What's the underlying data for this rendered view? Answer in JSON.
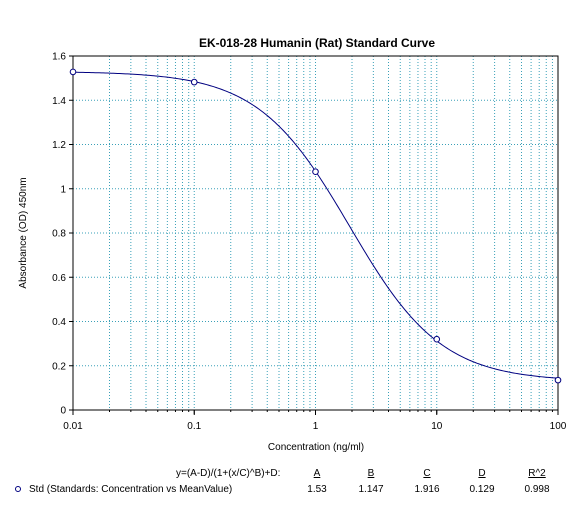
{
  "chart_data": {
    "type": "scatter",
    "title": "EK-018-28 Humanin (Rat) Standard Curve",
    "xlabel": "Concentration (ng/ml)",
    "ylabel": "Absorbance (OD) 450nm",
    "xscale": "log",
    "xlim": [
      0.01,
      100
    ],
    "ylim": [
      0,
      1.6
    ],
    "x_ticks": [
      "0.01",
      "0.1",
      "1",
      "10",
      "100"
    ],
    "y_ticks": [
      "0",
      "0.2",
      "0.4",
      "0.6",
      "0.8",
      "1",
      "1.2",
      "1.4",
      "1.6"
    ],
    "grid": true,
    "series": [
      {
        "name": "Std (Standards: Concentration vs MeanValue)",
        "color": "#000080",
        "x": [
          0.01,
          0.1,
          1,
          10,
          100
        ],
        "y": [
          1.528,
          1.482,
          1.077,
          0.32,
          0.135
        ]
      }
    ],
    "fit": {
      "equation": "y=(A-D)/(1+(x/C)^B)+D:",
      "headers": [
        "A",
        "B",
        "C",
        "D",
        "R^2"
      ],
      "values": [
        "1.53",
        "1.147",
        "1.916",
        "0.129",
        "0.998"
      ],
      "A": 1.53,
      "B": 1.147,
      "C": 1.916,
      "D": 0.129
    }
  }
}
